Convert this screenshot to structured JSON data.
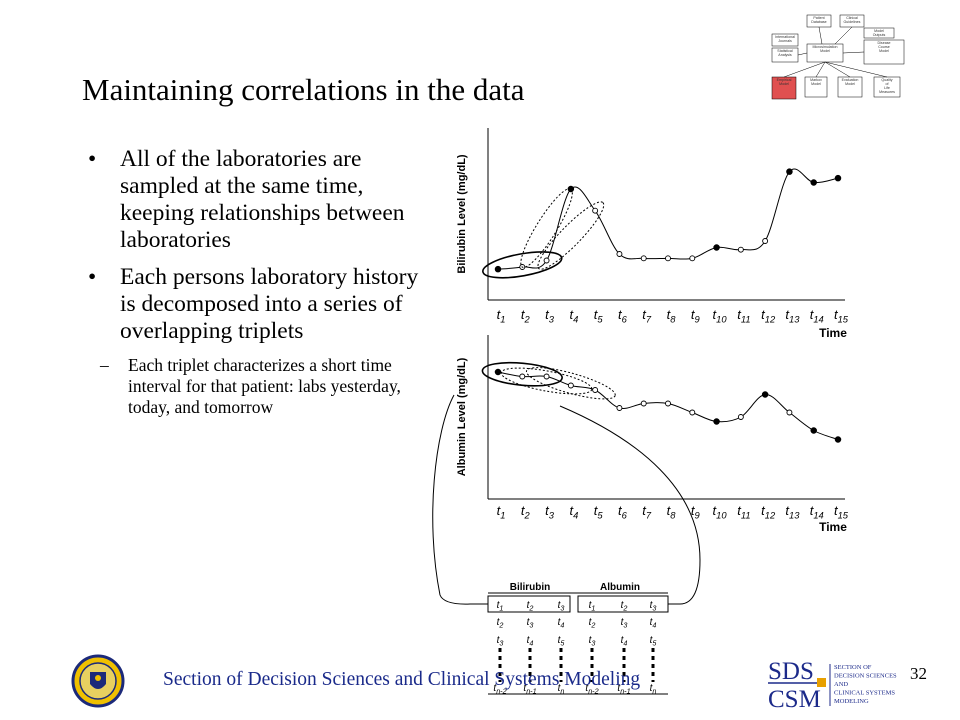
{
  "slide": {
    "title": "Maintaining correlations in the data",
    "bullets": [
      "All of the laboratories are sampled at the same time, keeping relationships between laboratories",
      "Each persons laboratory history is decomposed into a series of overlapping triplets"
    ],
    "sub_bullet": "Each triplet characterizes a short time interval for that patient: labs yesterday, today, and tomorrow",
    "footer": "Section of Decision Sciences and Clinical Systems Modeling",
    "page_number": "32"
  },
  "logos": {
    "sds_lines": [
      "SDS",
      "CSM"
    ],
    "sds_words": [
      "SECTION OF",
      "DECISION SCIENCES",
      "AND",
      "CLINICAL SYSTEMS",
      "MODELING"
    ]
  },
  "chart_data": [
    {
      "type": "line",
      "title": "",
      "ylabel": "Bilirubin Level (mg/dL)",
      "xlabel": "Time",
      "categories": [
        "t1",
        "t2",
        "t3",
        "t4",
        "t5",
        "t6",
        "t7",
        "t8",
        "t9",
        "t10",
        "t11",
        "t12",
        "t13",
        "t14",
        "t15"
      ],
      "series": [
        {
          "values": [
            0.5,
            0.6,
            0.9,
            4.2,
            3.2,
            1.2,
            1.0,
            1.0,
            1.0,
            1.5,
            1.4,
            1.8,
            5.0,
            4.5,
            4.7
          ]
        }
      ]
    },
    {
      "type": "line",
      "title": "",
      "ylabel": "Albumin Level (mg/dL)",
      "xlabel": "Time",
      "categories": [
        "t1",
        "t2",
        "t3",
        "t4",
        "t5",
        "t6",
        "t7",
        "t8",
        "t9",
        "t10",
        "t11",
        "t12",
        "t13",
        "t14",
        "t15"
      ],
      "series": [
        {
          "values": [
            4.4,
            4.3,
            4.3,
            4.1,
            4.0,
            3.6,
            3.7,
            3.7,
            3.5,
            3.3,
            3.4,
            3.9,
            3.5,
            3.1,
            2.9
          ]
        }
      ]
    }
  ],
  "triplet_table": {
    "headers": [
      "Bilirubin",
      "Albumin"
    ],
    "rows": [
      [
        "t1",
        "t2",
        "t3",
        "t1",
        "t2",
        "t3"
      ],
      [
        "t2",
        "t3",
        "t4",
        "t2",
        "t3",
        "t4"
      ],
      [
        "t3",
        "t4",
        "t5",
        "t3",
        "t4",
        "t5"
      ],
      [
        "tn-2",
        "tn-1",
        "tn",
        "tn-2",
        "tn-1",
        "tn"
      ]
    ]
  },
  "diagram": {
    "boxes": [
      "Patient Database",
      "Clinical Guidelines",
      "International Journals",
      "Statistical Analysis",
      "Microsimulation Model",
      "Disease Course Model",
      "Model Outputs",
      "Empirical Model",
      "Markov Model",
      "Evaluation Model",
      "Quality of Life Measures"
    ]
  }
}
